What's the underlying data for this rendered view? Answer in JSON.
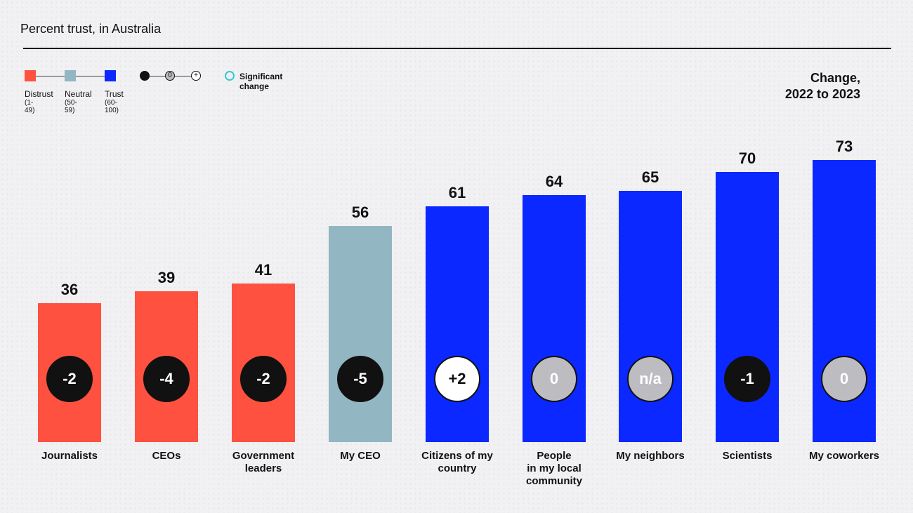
{
  "title": "Percent trust, in Australia",
  "legend": {
    "distrust": {
      "label": "Distrust",
      "range": "(1-49)",
      "color": "#ff5140"
    },
    "neutral": {
      "label": "Neutral",
      "range": "(50-59)",
      "color": "#92b6c2"
    },
    "trust": {
      "label": "Trust",
      "range": "(60-100)",
      "color": "#0a28ff"
    },
    "change_scale": {
      "minus": "",
      "zero": "0",
      "plus": "+"
    },
    "significant_change": "Significant change",
    "significant_color": "#38c7d1"
  },
  "change_header": {
    "line1": "Change,",
    "line2": "2022 to 2023"
  },
  "chart_data": {
    "type": "bar",
    "title": "Percent trust, in Australia",
    "ylim": [
      0,
      100
    ],
    "categories": [
      "Journalists",
      "CEOs",
      "Government leaders",
      "My CEO",
      "Citizens of my country",
      "People in my local community",
      "My neighbors",
      "Scientists",
      "My coworkers"
    ],
    "category_lines": [
      [
        "Journalists"
      ],
      [
        "CEOs"
      ],
      [
        "Government",
        "leaders"
      ],
      [
        "My CEO"
      ],
      [
        "Citizens of my",
        "country"
      ],
      [
        "People",
        "in my local",
        "community"
      ],
      [
        "My neighbors"
      ],
      [
        "Scientists"
      ],
      [
        "My coworkers"
      ]
    ],
    "values": [
      36,
      39,
      41,
      56,
      61,
      64,
      65,
      70,
      73
    ],
    "bands": [
      "distrust",
      "distrust",
      "distrust",
      "neutral",
      "trust",
      "trust",
      "trust",
      "trust",
      "trust"
    ],
    "change": [
      "-2",
      "-4",
      "-2",
      "-5",
      "+2",
      "0",
      "n/a",
      "-1",
      "0"
    ],
    "change_kind": [
      "neg",
      "neg",
      "neg",
      "neg",
      "pos",
      "zero",
      "zero",
      "neg",
      "zero"
    ]
  }
}
